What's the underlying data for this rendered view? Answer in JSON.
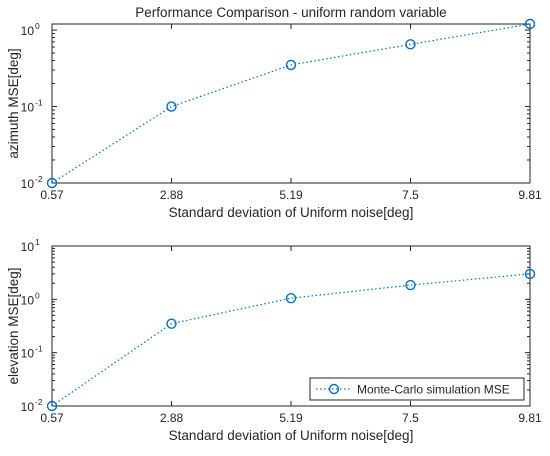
{
  "chart_data": [
    {
      "type": "line",
      "title": "Performance Comparison  - uniform random variable",
      "xlabel": "Standard deviation of Uniform noise[deg]",
      "ylabel": "azimuth MSE[deg]",
      "yscale": "log",
      "ylim": [
        0.01,
        1.2
      ],
      "y_ticks": [
        0.01,
        0.1,
        1
      ],
      "y_tick_labels": [
        {
          "base": "10",
          "exp": "-2"
        },
        {
          "base": "10",
          "exp": "-1"
        },
        {
          "base": "10",
          "exp": "0"
        }
      ],
      "categories": [
        "0.57",
        "2.88",
        "5.19",
        "7.5",
        "9.81"
      ],
      "x": [
        0.57,
        2.88,
        5.19,
        7.5,
        9.81
      ],
      "grid": false,
      "series": [
        {
          "name": "Monte-Carlo simulation MSE",
          "values": [
            0.01,
            0.1,
            0.35,
            0.65,
            1.2
          ],
          "color": "#0072BD"
        }
      ]
    },
    {
      "type": "line",
      "title": "",
      "xlabel": "Standard deviation of Uniform noise[deg]",
      "ylabel": "elevation MSE[deg]",
      "yscale": "log",
      "ylim": [
        0.01,
        10
      ],
      "y_ticks": [
        0.01,
        0.1,
        1,
        10
      ],
      "y_tick_labels": [
        {
          "base": "10",
          "exp": "-2"
        },
        {
          "base": "10",
          "exp": "-1"
        },
        {
          "base": "10",
          "exp": "0"
        },
        {
          "base": "10",
          "exp": "1"
        }
      ],
      "categories": [
        "0.57",
        "2.88",
        "5.19",
        "7.5",
        "9.81"
      ],
      "x": [
        0.57,
        2.88,
        5.19,
        7.5,
        9.81
      ],
      "grid": false,
      "legend": {
        "position": "bottom-right",
        "entries": [
          "Monte-Carlo simulation MSE"
        ]
      },
      "series": [
        {
          "name": "Monte-Carlo simulation MSE",
          "values": [
            0.01,
            0.35,
            1.05,
            1.85,
            3.0
          ],
          "color": "#0072BD"
        }
      ]
    }
  ]
}
